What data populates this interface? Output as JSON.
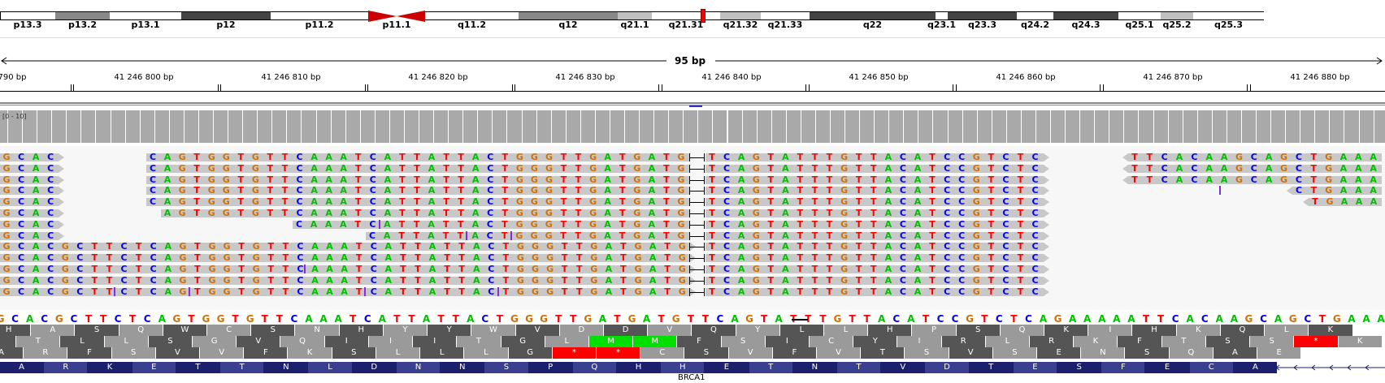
{
  "colors": {
    "A": "#00c000",
    "C": "#0000ff",
    "G": "#d17105",
    "T": "#ff0000",
    "read_bg": "#c8c8c8",
    "coverage": "#a9a9a9",
    "insertion": "#8a2be2",
    "aa_dark": "#555555",
    "aa_light": "#9a9a9a",
    "met": "#00e000",
    "stop": "#ff0000",
    "gene_exon": "#1c1f6b",
    "gene_exon_alt": "#3b3f8f"
  },
  "ideogram": {
    "bands": [
      {
        "label": "p13.3",
        "stain": "white"
      },
      {
        "label": "p13.2",
        "stain": "gpos50"
      },
      {
        "label": "p13.1",
        "stain": "white"
      },
      {
        "label": "p12",
        "stain": "gpos75"
      },
      {
        "label": "p11.2",
        "stain": "white"
      },
      {
        "label": "p11.1",
        "stain": "acen"
      },
      {
        "label": "q11.2",
        "stain": "white"
      },
      {
        "label": "q12",
        "stain": "gpos50"
      },
      {
        "label": "q21.1",
        "stain": "gpos25"
      },
      {
        "label": "q21.31",
        "stain": "white"
      },
      {
        "label": "q21.32",
        "stain": "gpos25"
      },
      {
        "label": "q21.33",
        "stain": "white"
      },
      {
        "label": "q22",
        "stain": "gpos75"
      },
      {
        "label": "q23.1",
        "stain": "white"
      },
      {
        "label": "q23.3",
        "stain": "gpos75"
      },
      {
        "label": "q24.2",
        "stain": "white"
      },
      {
        "label": "q24.3",
        "stain": "gpos75"
      },
      {
        "label": "q25.1",
        "stain": "white"
      },
      {
        "label": "q25.2",
        "stain": "gpos25"
      },
      {
        "label": "q25.3",
        "stain": "white"
      }
    ]
  },
  "ruler": {
    "span_label": "95 bp",
    "ticks": [
      "790 bp",
      "41 246 800 bp",
      "41 246 810 bp",
      "41 246 820 bp",
      "41 246 830 bp",
      "41 246 840 bp",
      "41 246 850 bp",
      "41 246 860 bp",
      "41 246 870 bp",
      "41 246 880 bp"
    ]
  },
  "coverage": {
    "range_label": "[0 - 10]"
  },
  "reference": {
    "sequence": "GCACGCTTCTCAGTGGTGTTCAAATCATTATTACTGGGTTGATGATGTTCAGTATTTGTTACATCCGTCTCAGAAAAATTCACAAGCAGCTGAAA"
  },
  "translation": {
    "frame1": [
      "H",
      "A",
      "S",
      "Q",
      "W",
      "C",
      "S",
      "N",
      "H",
      "Y",
      "Y",
      "W",
      "V",
      "D",
      "D",
      "V",
      "Q",
      "Y",
      "L",
      "L",
      "H",
      "P",
      "S",
      "Q",
      "K",
      "I",
      "H",
      "K",
      "Q",
      "L",
      "K"
    ],
    "frame2": [
      "C",
      "T",
      "L",
      "L",
      "S",
      "G",
      "V",
      "Q",
      "I",
      "I",
      "I",
      "T",
      "G",
      "L",
      "M",
      "M",
      "F",
      "S",
      "I",
      "C",
      "Y",
      "I",
      "R",
      "L",
      "R",
      "K",
      "F",
      "T",
      "S",
      "S",
      "*",
      "K"
    ],
    "frame3": [
      "A",
      "R",
      "F",
      "S",
      "V",
      "V",
      "F",
      "K",
      "S",
      "L",
      "L",
      "L",
      "G",
      "*",
      "*",
      "C",
      "S",
      "V",
      "F",
      "V",
      "T",
      "S",
      "V",
      "S",
      "E",
      "N",
      "S",
      "Q",
      "A",
      "E"
    ]
  },
  "gene": {
    "name": "BRCA1",
    "aminoacids": [
      "A",
      "R",
      "K",
      "E",
      "T",
      "T",
      "N",
      "L",
      "D",
      "N",
      "N",
      "S",
      "P",
      "Q",
      "H",
      "H",
      "E",
      "T",
      "N",
      "T",
      "V",
      "D",
      "T",
      "E",
      "S",
      "F",
      "E",
      "C",
      "A"
    ]
  },
  "reads": [
    {
      "left": "GCAC",
      "right": "TCAGTATTTGTTACATCCGTCTC",
      "mid": "CAGTGGTGTTCAAATCATTATTACTGGGTTGATGATG",
      "tail": "TTCACAAGCAGCTGAAA"
    },
    {
      "left": "GCAC",
      "right": "TCAGTATTTGTTACATCCGTCTC",
      "mid": "CAGTGGTGTTCAAATCATTATTACTGGGTTGATGATG",
      "tail": "TTCACAAGCAGCTGAAA"
    },
    {
      "left": "GCAC",
      "right": "TCAGTATTTGTTACATCCGTCTC",
      "mid": "CAGTGGTGTTCAAATCATTATTACTGGGTTGATGATG",
      "tail": "TTCACAAGCAGCTGAAA"
    },
    {
      "left": "GCAC",
      "right": "TCAGTATTTGTTACATCCGTCTC",
      "mid": "CAGTGGTGTTCAAATCATTATTACTGGGTTGATGATG",
      "tail": "CTGAAA"
    },
    {
      "left": "GCAC",
      "right": "TCAGTATTTGTTACATCCGTCTC",
      "mid": "CAGTGGTGTTCAAATCATTATTACTGGGTTGATGATG",
      "tail": "TGAAA"
    },
    {
      "left": "GCAC",
      "right": "TCAGTATTTGTTACATCCGTCTC",
      "mid": "AGTGGTGTTCAAATCATTATTACTGGGTTGATGATG",
      "tail": ""
    },
    {
      "left": "GCAC",
      "right": "TCAGTATTTGTTACATCCGTCTC",
      "mid": "CAAATCATTATTACTGGGTTGATGATG",
      "tail": ""
    },
    {
      "left": "GCAC",
      "right": "TCAGTATTTGTTACATCCGTCTC",
      "mid": "CATTATTACTGGGTTGATGATG",
      "tail": ""
    },
    {
      "left": "GCACGCTTCTCAGTGGTGTTCAAATCATTATTACTGGGTTGATGATG",
      "right": "TCAGTATTTGTTACATCCGTCTC",
      "mid": "",
      "tail": ""
    },
    {
      "left": "GCACGCTTCTCAGTGGTGTTCAAATCATTATTACTGGGTTGATGATG",
      "right": "TCAGTATTTGTTACATCCGTCTC",
      "mid": "",
      "tail": ""
    },
    {
      "left": "GCACGCTTCTCAGTGGTGTTCAAATCATTATTACTGGGTTGATGATG",
      "right": "TCAGTATTTGTTACATCCGTCTC",
      "mid": "",
      "tail": ""
    },
    {
      "left": "GCACGCTTCTCAGTGGTGTTCAAATCATTATTACTGGGTTGATGATG",
      "right": "TCAGTATTTGTTACATCCGTCTC",
      "mid": "",
      "tail": ""
    },
    {
      "left": "GCACGCTTCTCAGTGGTGTTCAAATCATTATTACTGGGTTGATGATG",
      "right": "TCAGTATTTGTTACATCCGTCTC",
      "mid": "",
      "tail": ""
    }
  ]
}
